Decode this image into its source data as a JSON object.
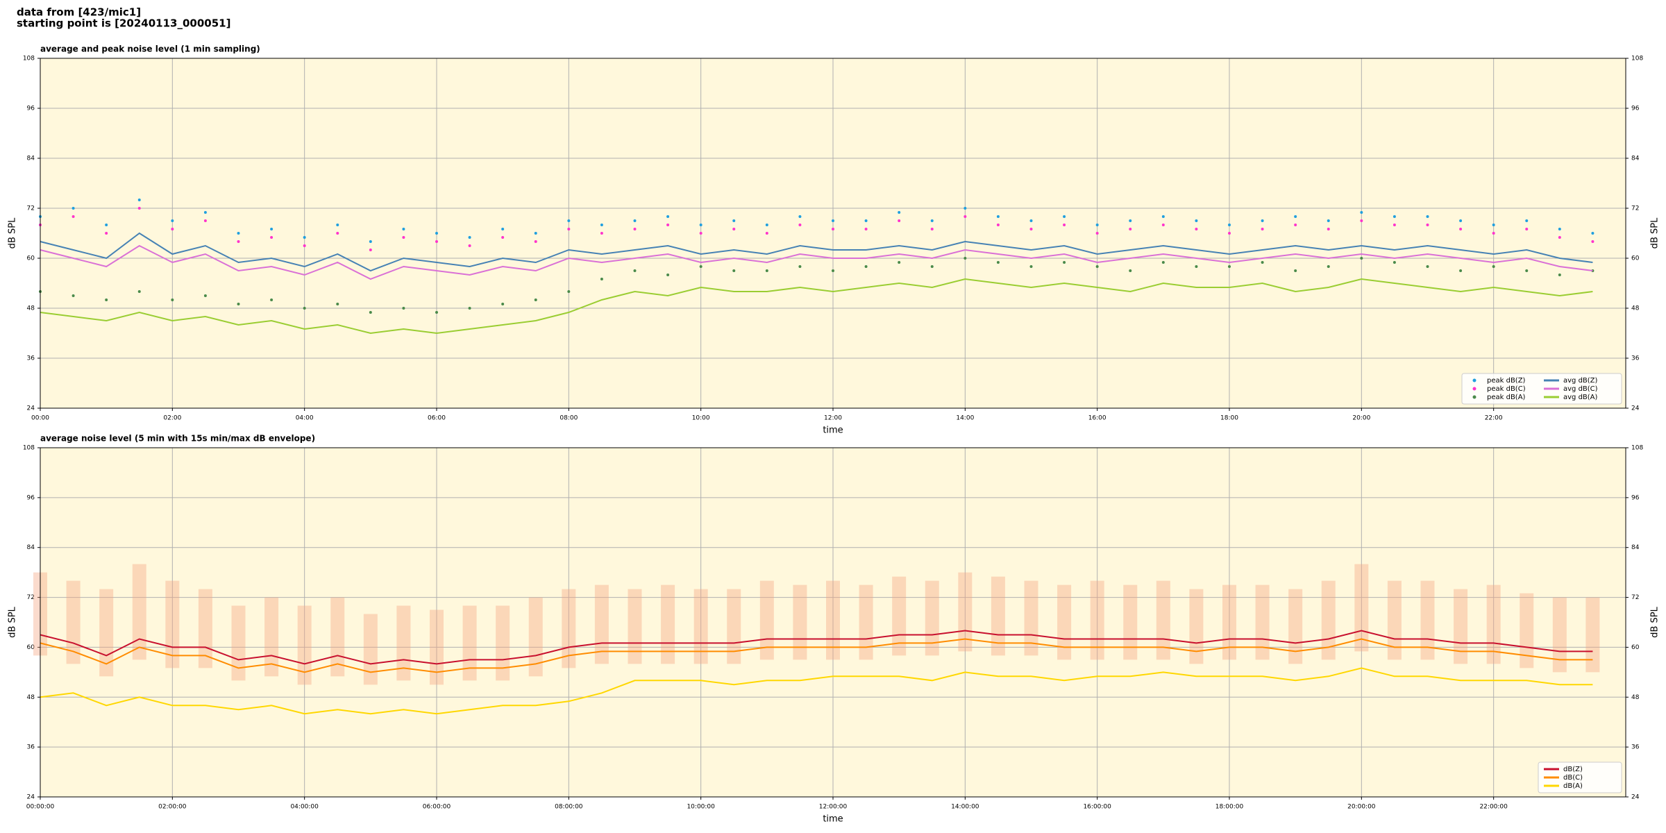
{
  "header": {
    "source": "data from [423/mic1]",
    "start": "starting point is [20240113_000051]"
  },
  "chart_data": [
    {
      "type": "line",
      "title": "average and peak noise level (1 min sampling)",
      "xlabel": "time",
      "ylabel": "dB SPL",
      "xlim": [
        0,
        1440
      ],
      "ylim": [
        24,
        108
      ],
      "yticks": [
        24,
        36,
        48,
        60,
        72,
        84,
        96,
        108
      ],
      "xticks": [
        {
          "value": 0,
          "label": "00:00"
        },
        {
          "value": 120,
          "label": "02:00"
        },
        {
          "value": 240,
          "label": "04:00"
        },
        {
          "value": 360,
          "label": "06:00"
        },
        {
          "value": 480,
          "label": "08:00"
        },
        {
          "value": 600,
          "label": "10:00"
        },
        {
          "value": 720,
          "label": "12:00"
        },
        {
          "value": 840,
          "label": "14:00"
        },
        {
          "value": 960,
          "label": "16:00"
        },
        {
          "value": 1080,
          "label": "18:00"
        },
        {
          "value": 1200,
          "label": "20:00"
        },
        {
          "value": 1320,
          "label": "22:00"
        }
      ],
      "grid": true,
      "legend": "lower right",
      "legend_columns": 2,
      "background": "#fff8dc",
      "x": [
        0,
        30,
        60,
        90,
        120,
        150,
        180,
        210,
        240,
        270,
        300,
        330,
        360,
        390,
        420,
        450,
        480,
        510,
        540,
        570,
        600,
        630,
        660,
        690,
        720,
        750,
        780,
        810,
        840,
        870,
        900,
        930,
        960,
        990,
        1020,
        1050,
        1080,
        1110,
        1140,
        1170,
        1200,
        1230,
        1260,
        1290,
        1320,
        1350,
        1380,
        1410
      ],
      "series": [
        {
          "name": "peak dB(Z)",
          "type": "scatter",
          "color": "#1f9fdf",
          "values": [
            70,
            72,
            68,
            74,
            69,
            71,
            66,
            67,
            65,
            68,
            64,
            67,
            66,
            65,
            67,
            66,
            69,
            68,
            69,
            70,
            68,
            69,
            68,
            70,
            69,
            69,
            71,
            69,
            72,
            70,
            69,
            70,
            68,
            69,
            70,
            69,
            68,
            69,
            70,
            69,
            71,
            70,
            70,
            69,
            68,
            69,
            67,
            66
          ]
        },
        {
          "name": "peak dB(C)",
          "type": "scatter",
          "color": "#ff33cc",
          "values": [
            68,
            70,
            66,
            72,
            67,
            69,
            64,
            65,
            63,
            66,
            62,
            65,
            64,
            63,
            65,
            64,
            67,
            66,
            67,
            68,
            66,
            67,
            66,
            68,
            67,
            67,
            69,
            67,
            70,
            68,
            67,
            68,
            66,
            67,
            68,
            67,
            66,
            67,
            68,
            67,
            69,
            68,
            68,
            67,
            66,
            67,
            65,
            64
          ]
        },
        {
          "name": "peak dB(A)",
          "type": "scatter",
          "color": "#4a8a4a",
          "values": [
            52,
            51,
            50,
            52,
            50,
            51,
            49,
            50,
            48,
            49,
            47,
            48,
            47,
            48,
            49,
            50,
            52,
            55,
            57,
            56,
            58,
            57,
            57,
            58,
            57,
            58,
            59,
            58,
            60,
            59,
            58,
            59,
            58,
            57,
            59,
            58,
            58,
            59,
            57,
            58,
            60,
            59,
            58,
            57,
            58,
            57,
            56,
            57
          ]
        },
        {
          "name": "avg dB(Z)",
          "type": "line",
          "color": "#4682b4",
          "values": [
            64,
            62,
            60,
            66,
            61,
            63,
            59,
            60,
            58,
            61,
            57,
            60,
            59,
            58,
            60,
            59,
            62,
            61,
            62,
            63,
            61,
            62,
            61,
            63,
            62,
            62,
            63,
            62,
            64,
            63,
            62,
            63,
            61,
            62,
            63,
            62,
            61,
            62,
            63,
            62,
            63,
            62,
            63,
            62,
            61,
            62,
            60,
            59
          ]
        },
        {
          "name": "avg dB(C)",
          "type": "line",
          "color": "#da70d6",
          "values": [
            62,
            60,
            58,
            63,
            59,
            61,
            57,
            58,
            56,
            59,
            55,
            58,
            57,
            56,
            58,
            57,
            60,
            59,
            60,
            61,
            59,
            60,
            59,
            61,
            60,
            60,
            61,
            60,
            62,
            61,
            60,
            61,
            59,
            60,
            61,
            60,
            59,
            60,
            61,
            60,
            61,
            60,
            61,
            60,
            59,
            60,
            58,
            57
          ]
        },
        {
          "name": "avg dB(A)",
          "type": "line",
          "color": "#9acd32",
          "values": [
            47,
            46,
            45,
            47,
            45,
            46,
            44,
            45,
            43,
            44,
            42,
            43,
            42,
            43,
            44,
            45,
            47,
            50,
            52,
            51,
            53,
            52,
            52,
            53,
            52,
            53,
            54,
            53,
            55,
            54,
            53,
            54,
            53,
            52,
            54,
            53,
            53,
            54,
            52,
            53,
            55,
            54,
            53,
            52,
            53,
            52,
            51,
            52
          ]
        }
      ]
    },
    {
      "type": "line",
      "title": "average noise level (5 min with 15s min/max dB envelope)",
      "xlabel": "time",
      "ylabel": "dB SPL",
      "xlim": [
        0,
        1440
      ],
      "ylim": [
        24,
        108
      ],
      "yticks": [
        24,
        36,
        48,
        60,
        72,
        84,
        96,
        108
      ],
      "xticks": [
        {
          "value": 0,
          "label": "00:00:00"
        },
        {
          "value": 120,
          "label": "02:00:00"
        },
        {
          "value": 240,
          "label": "04:00:00"
        },
        {
          "value": 360,
          "label": "06:00:00"
        },
        {
          "value": 480,
          "label": "08:00:00"
        },
        {
          "value": 600,
          "label": "10:00:00"
        },
        {
          "value": 720,
          "label": "12:00:00"
        },
        {
          "value": 840,
          "label": "14:00:00"
        },
        {
          "value": 960,
          "label": "16:00:00"
        },
        {
          "value": 1080,
          "label": "18:00:00"
        },
        {
          "value": 1200,
          "label": "20:00:00"
        },
        {
          "value": 1320,
          "label": "22:00:00"
        }
      ],
      "grid": true,
      "legend": "lower right",
      "legend_columns": 1,
      "background": "#fff8dc",
      "x": [
        0,
        30,
        60,
        90,
        120,
        150,
        180,
        210,
        240,
        270,
        300,
        330,
        360,
        390,
        420,
        450,
        480,
        510,
        540,
        570,
        600,
        630,
        660,
        690,
        720,
        750,
        780,
        810,
        840,
        870,
        900,
        930,
        960,
        990,
        1020,
        1050,
        1080,
        1110,
        1140,
        1170,
        1200,
        1230,
        1260,
        1290,
        1320,
        1350,
        1380,
        1410
      ],
      "envelope": {
        "color": "#f4a582",
        "min": [
          58,
          56,
          53,
          57,
          55,
          55,
          52,
          53,
          51,
          53,
          51,
          52,
          51,
          52,
          52,
          53,
          55,
          56,
          56,
          56,
          56,
          56,
          57,
          57,
          57,
          57,
          58,
          58,
          59,
          58,
          58,
          57,
          57,
          57,
          57,
          56,
          57,
          57,
          56,
          57,
          59,
          57,
          57,
          56,
          56,
          55,
          54,
          54
        ],
        "max": [
          78,
          76,
          74,
          80,
          76,
          74,
          70,
          72,
          70,
          72,
          68,
          70,
          69,
          70,
          70,
          72,
          74,
          75,
          74,
          75,
          74,
          74,
          76,
          75,
          76,
          75,
          77,
          76,
          78,
          77,
          76,
          75,
          76,
          75,
          76,
          74,
          75,
          75,
          74,
          76,
          80,
          76,
          76,
          74,
          75,
          73,
          72,
          72
        ]
      },
      "series": [
        {
          "name": "dB(Z)",
          "type": "line",
          "color": "#c8102e",
          "values": [
            63,
            61,
            58,
            62,
            60,
            60,
            57,
            58,
            56,
            58,
            56,
            57,
            56,
            57,
            57,
            58,
            60,
            61,
            61,
            61,
            61,
            61,
            62,
            62,
            62,
            62,
            63,
            63,
            64,
            63,
            63,
            62,
            62,
            62,
            62,
            61,
            62,
            62,
            61,
            62,
            64,
            62,
            62,
            61,
            61,
            60,
            59,
            59
          ]
        },
        {
          "name": "dB(C)",
          "type": "line",
          "color": "#ff8c00",
          "values": [
            61,
            59,
            56,
            60,
            58,
            58,
            55,
            56,
            54,
            56,
            54,
            55,
            54,
            55,
            55,
            56,
            58,
            59,
            59,
            59,
            59,
            59,
            60,
            60,
            60,
            60,
            61,
            61,
            62,
            61,
            61,
            60,
            60,
            60,
            60,
            59,
            60,
            60,
            59,
            60,
            62,
            60,
            60,
            59,
            59,
            58,
            57,
            57
          ]
        },
        {
          "name": "dB(A)",
          "type": "line",
          "color": "#ffd700",
          "values": [
            48,
            49,
            46,
            48,
            46,
            46,
            45,
            46,
            44,
            45,
            44,
            45,
            44,
            45,
            46,
            46,
            47,
            49,
            52,
            52,
            52,
            51,
            52,
            52,
            53,
            53,
            53,
            52,
            54,
            53,
            53,
            52,
            53,
            53,
            54,
            53,
            53,
            53,
            52,
            53,
            55,
            53,
            53,
            52,
            52,
            52,
            51,
            51
          ]
        }
      ]
    }
  ]
}
